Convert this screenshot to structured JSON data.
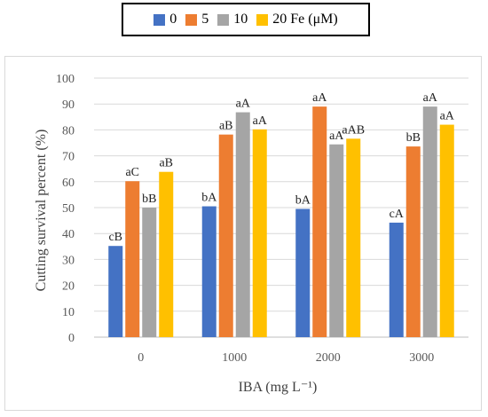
{
  "chart_data": {
    "type": "bar",
    "categories": [
      "0",
      "1000",
      "2000",
      "3000"
    ],
    "xlabel": "IBA (mg L⁻¹)",
    "ylabel": "Cutting survival percent (%)",
    "ylim": [
      0,
      100
    ],
    "yticks": [
      0,
      10,
      20,
      30,
      40,
      50,
      60,
      70,
      80,
      90,
      100
    ],
    "grid": true,
    "legend": "top-center",
    "series": [
      {
        "name": "0",
        "color": "#4472c4",
        "values": [
          35.2,
          50.5,
          49.5,
          44.2
        ],
        "labels": [
          "cB",
          "bA",
          "bA",
          "cA"
        ]
      },
      {
        "name": "5",
        "color": "#ed7d31",
        "values": [
          60.2,
          78.2,
          89.0,
          73.6
        ],
        "labels": [
          "aC",
          "aB",
          "aA",
          "bB"
        ]
      },
      {
        "name": "10",
        "color": "#a5a5a5",
        "values": [
          50.0,
          86.8,
          74.4,
          89.0
        ],
        "labels": [
          "bB",
          "aA",
          "aA",
          "aA"
        ]
      },
      {
        "name": "20 Fe (μM)",
        "color": "#ffc000",
        "values": [
          63.8,
          80.2,
          76.6,
          82.0
        ],
        "labels": [
          "aB",
          "aA",
          "aAB",
          "aA"
        ]
      }
    ]
  }
}
